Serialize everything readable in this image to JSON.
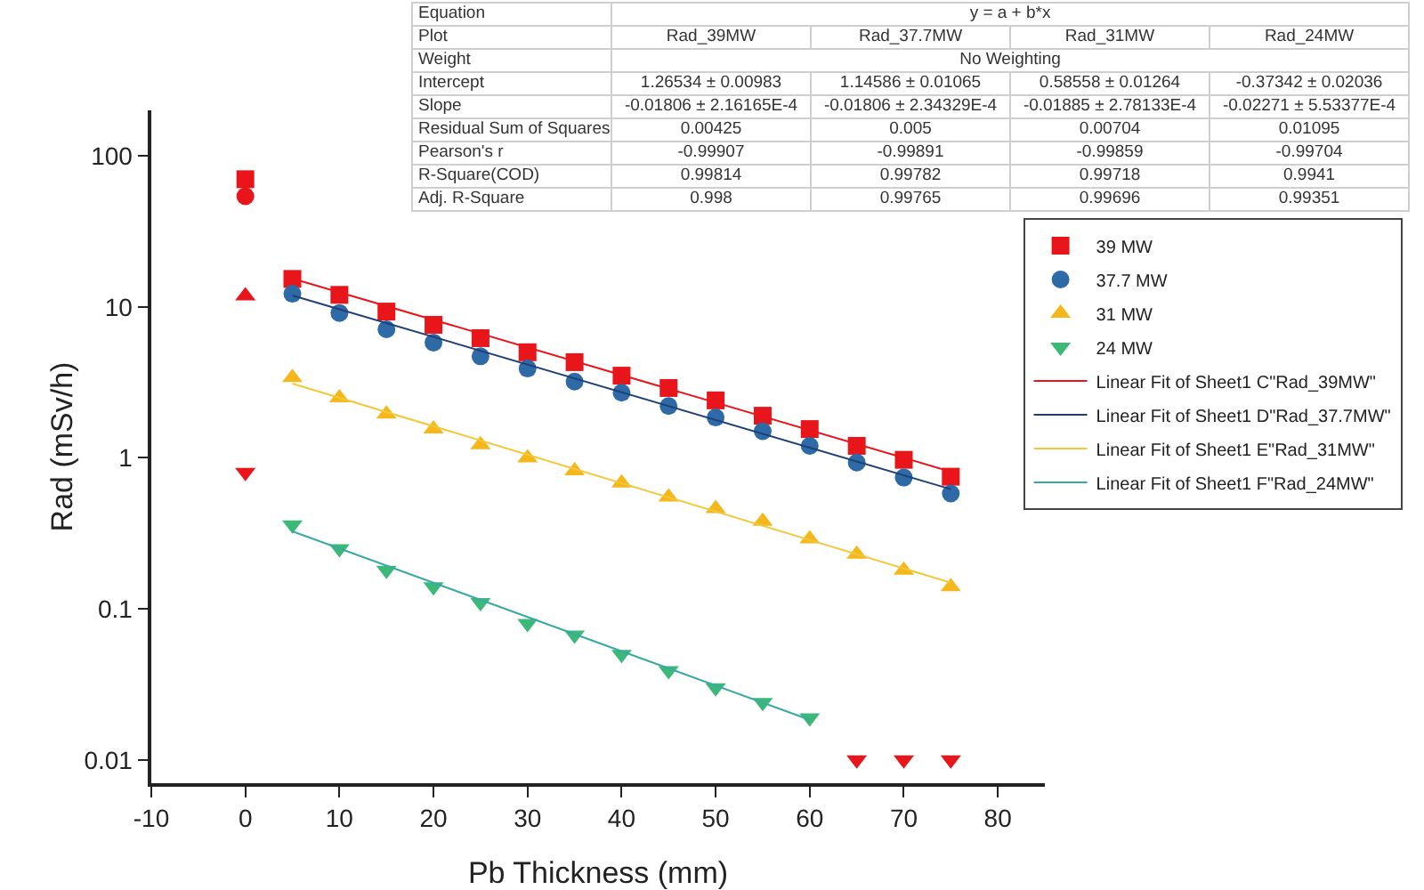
{
  "chart_data": {
    "type": "scatter",
    "xlabel": "Pb Thickness (mm)",
    "ylabel": "Rad (mSv/h)",
    "log": "y",
    "grid": false,
    "legend": "top right",
    "xlim": [
      -10,
      85
    ],
    "xticks": [
      -10,
      0,
      10,
      20,
      30,
      40,
      50,
      60,
      70,
      80
    ],
    "ylim": [
      0.007,
      200
    ],
    "yticks": [
      0.01,
      0.1,
      1,
      10,
      100
    ],
    "series": [
      {
        "name": "39 MW",
        "marker": "square",
        "color": "#e8161b",
        "x": [
          5,
          10,
          15,
          20,
          25,
          30,
          35,
          40,
          45,
          50,
          55,
          60,
          65,
          70,
          75,
          0
        ],
        "values": [
          15.3,
          12.0,
          9.3,
          7.6,
          6.2,
          5.0,
          4.3,
          3.5,
          2.9,
          2.4,
          1.9,
          1.55,
          1.2,
          0.97,
          0.75,
          70
        ]
      },
      {
        "name": "37.7 MW",
        "marker": "circle",
        "color": "#2e6aa6",
        "colors": [
          "#2e6aa6",
          "#2e6aa6",
          "#2e6aa6",
          "#2e6aa6",
          "#2e6aa6",
          "#2e6aa6",
          "#2e6aa6",
          "#2e6aa6",
          "#2e6aa6",
          "#2e6aa6",
          "#2e6aa6",
          "#2e6aa6",
          "#2e6aa6",
          "#2e6aa6",
          "#2e6aa6",
          "#e8161b"
        ],
        "x": [
          5,
          10,
          15,
          20,
          25,
          30,
          35,
          40,
          45,
          50,
          55,
          60,
          65,
          70,
          75,
          0
        ],
        "values": [
          12.2,
          9.1,
          7.1,
          5.8,
          4.7,
          3.9,
          3.2,
          2.7,
          2.2,
          1.85,
          1.5,
          1.2,
          0.93,
          0.74,
          0.58,
          54
        ]
      },
      {
        "name": "31 MW",
        "marker": "triangle",
        "color": "#f5b81c",
        "colors": [
          "#f5b81c",
          "#f5b81c",
          "#f5b81c",
          "#f5b81c",
          "#f5b81c",
          "#f5b81c",
          "#f5b81c",
          "#f5b81c",
          "#f5b81c",
          "#f5b81c",
          "#f5b81c",
          "#f5b81c",
          "#f5b81c",
          "#f5b81c",
          "#f5b81c",
          "#e8161b"
        ],
        "x": [
          5,
          10,
          15,
          20,
          25,
          30,
          35,
          40,
          45,
          50,
          55,
          60,
          65,
          70,
          75,
          0
        ],
        "values": [
          3.4,
          2.5,
          1.95,
          1.55,
          1.22,
          1.0,
          0.82,
          0.68,
          0.55,
          0.46,
          0.38,
          0.29,
          0.23,
          0.18,
          0.14,
          11.8
        ]
      },
      {
        "name": "24 MW",
        "marker": "triangle-down",
        "color": "#3cb878",
        "colors": [
          "#3cb878",
          "#3cb878",
          "#3cb878",
          "#3cb878",
          "#3cb878",
          "#3cb878",
          "#3cb878",
          "#3cb878",
          "#3cb878",
          "#3cb878",
          "#3cb878",
          "#3cb878",
          "#e8161b",
          "#e8161b",
          "#e8161b",
          "#e8161b"
        ],
        "x": [
          5,
          10,
          15,
          20,
          25,
          30,
          35,
          40,
          45,
          50,
          55,
          60,
          65,
          70,
          75,
          0
        ],
        "values": [
          0.36,
          0.25,
          0.18,
          0.14,
          0.11,
          0.08,
          0.067,
          0.05,
          0.039,
          0.03,
          0.024,
          0.019,
          0.01,
          0.01,
          0.01,
          0.8
        ]
      },
      {
        "name": "Linear Fit of Sheet1 C\"Rad_39MW\"",
        "type": "line",
        "marker": "none",
        "line_style": "solid",
        "color": "#e8161b",
        "x": [
          5,
          75
        ],
        "values": [
          15.4,
          0.81
        ]
      },
      {
        "name": "Linear Fit of Sheet1 D\"Rad_37.7MW\"",
        "type": "line",
        "marker": "none",
        "line_style": "solid",
        "color": "#1f3f7a",
        "x": [
          5,
          75
        ],
        "values": [
          11.9,
          0.62
        ]
      },
      {
        "name": "Linear Fit of Sheet1 E\"Rad_31MW\"",
        "type": "line",
        "marker": "none",
        "line_style": "solid",
        "color": "#f2c83a",
        "x": [
          5,
          75
        ],
        "values": [
          3.1,
          0.149
        ]
      },
      {
        "name": "Linear Fit of Sheet1 F\"Rad_24MW\"",
        "type": "line",
        "marker": "none",
        "line_style": "solid",
        "color": "#3aa9a0",
        "x": [
          5,
          60
        ],
        "values": [
          0.326,
          0.0184
        ]
      }
    ],
    "annotations": [
      "Equation",
      "y = a + b*x",
      "Plot",
      "Rad_39MW",
      "Rad_37.7MW",
      "Rad_31MW",
      "Rad_24MW",
      "Weight",
      "No Weighting",
      "Intercept",
      "1.26534 ± 0.00983",
      "1.14586 ± 0.01065",
      "0.58558 ± 0.01264",
      "-0.37342 ± 0.02036",
      "Slope",
      "-0.01806 ± 2.16165E-4",
      "-0.01806 ± 2.34329E-4",
      "-0.01885 ± 2.78133E-4",
      "-0.02271 ± 5.53377E-4",
      "Residual Sum of Squares",
      "0.00425",
      "0.005",
      "0.00704",
      "0.01095",
      "Pearson's r",
      "-0.99907",
      "-0.99891",
      "-0.99859",
      "-0.99704",
      "R-Square(COD)",
      "0.99814",
      "0.99782",
      "0.99718",
      "0.9941",
      "Adj. R-Square",
      "0.998",
      "0.99765",
      "0.99696",
      "0.99351"
    ]
  }
}
